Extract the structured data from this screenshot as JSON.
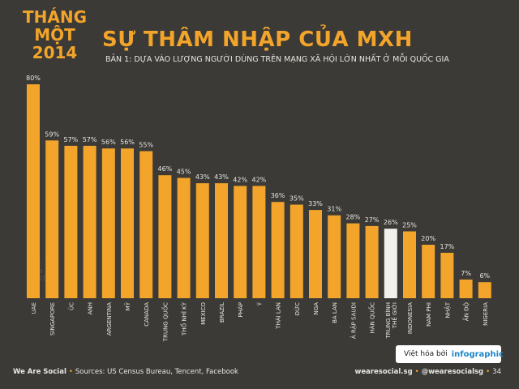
{
  "badge": {
    "line1": "THÁNG",
    "line2": "MỘT",
    "line3": "2014"
  },
  "header": {
    "title": "SỰ THÂM NHẬP CỦA MXH",
    "subtitle": "BẢN 1: DỰA VÀO LƯỢNG NGƯỜI DÙNG TRÊN MẠNG XÃ HỘI LỚN NHẤT Ở MỖI QUỐC GIA"
  },
  "colors": {
    "background": "#3b3a36",
    "bar": "#f3a42a",
    "highlight_bar": "#f2f1ec",
    "text": "#e8e6e0"
  },
  "chart_data": {
    "type": "bar",
    "categories": [
      "UAE",
      "SINGAPORE",
      "ÚC",
      "ANH",
      "ARGENTINA",
      "MỸ",
      "CANADA",
      "TRUNG QUỐC",
      "THỔ NHĨ KỲ",
      "MEXICO",
      "BRAZIL",
      "PHÁP",
      "Ý",
      "THÁI LAN",
      "ĐỨC",
      "NGA",
      "BA LAN",
      "Ả RẬP SAUDI",
      "HÀN QUỐC",
      "TRUNG BÌNH THẾ GIỚI",
      "INDONESIA",
      "NAM PHI",
      "NHẬT",
      "ẤN ĐỘ",
      "NIGERIA"
    ],
    "values": [
      80,
      59,
      57,
      57,
      56,
      56,
      55,
      46,
      45,
      43,
      43,
      42,
      42,
      36,
      35,
      33,
      31,
      28,
      27,
      26,
      25,
      20,
      17,
      7,
      6
    ],
    "value_labels": [
      "80%",
      "59%",
      "57%",
      "57%",
      "56%",
      "56%",
      "55%",
      "46%",
      "45%",
      "43%",
      "43%",
      "42%",
      "42%",
      "36%",
      "35%",
      "33%",
      "31%",
      "28%",
      "27%",
      "26%",
      "25%",
      "20%",
      "17%",
      "7%",
      "6%"
    ],
    "highlight_category": "TRUNG BÌNH THẾ GIỚI",
    "ylim": [
      0,
      80
    ],
    "grid": false
  },
  "watermark": "we are social",
  "footer": {
    "brand": "We Are Social",
    "sources": "Sources: US Census Bureau, Tencent, Facebook",
    "site": "wearesocial.sg",
    "handle": "@wearesocialsg",
    "page": "34"
  },
  "credit": {
    "text": "Việt hóa bởi",
    "logo": "infographic"
  }
}
